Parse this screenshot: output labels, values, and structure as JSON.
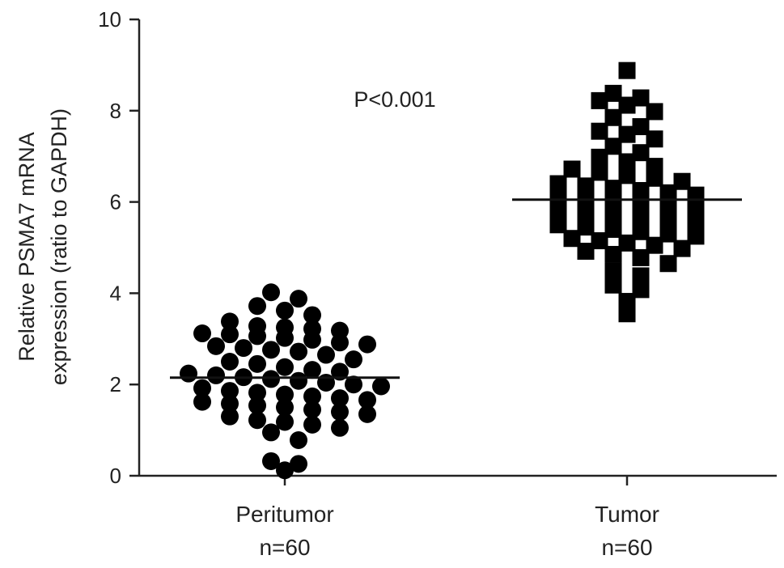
{
  "chart_data": {
    "type": "scatter",
    "title": "",
    "ylabel_lines": [
      "Relative PSMA7 mRNA",
      "expression (ratio to GAPDH)"
    ],
    "xlabel": "",
    "ylim": [
      0,
      10
    ],
    "yticks": [
      "0",
      "2",
      "4",
      "6",
      "8",
      "10"
    ],
    "annotation": "P<0.001",
    "marker_color": "#000000",
    "groups": [
      {
        "name": "Peritumor",
        "n_label": "n=60",
        "marker": "circle",
        "mean": 2.15,
        "values": [
          4.02,
          3.88,
          3.72,
          3.62,
          3.52,
          3.38,
          3.28,
          3.25,
          3.22,
          3.18,
          3.12,
          3.1,
          3.06,
          3.02,
          2.98,
          2.92,
          2.88,
          2.84,
          2.8,
          2.76,
          2.72,
          2.65,
          2.55,
          2.5,
          2.45,
          2.38,
          2.32,
          2.28,
          2.24,
          2.2,
          2.16,
          2.12,
          2.08,
          2.04,
          2.0,
          1.96,
          1.92,
          1.86,
          1.82,
          1.78,
          1.74,
          1.7,
          1.66,
          1.62,
          1.58,
          1.54,
          1.5,
          1.45,
          1.4,
          1.35,
          1.3,
          1.22,
          1.18,
          1.12,
          1.05,
          0.95,
          0.78,
          0.32,
          0.26,
          0.12
        ]
      },
      {
        "name": "Tumor",
        "n_label": "n=60",
        "marker": "square",
        "mean": 6.05,
        "values": [
          8.88,
          8.38,
          8.28,
          8.22,
          8.12,
          7.98,
          7.85,
          7.65,
          7.55,
          7.48,
          7.38,
          7.22,
          7.08,
          6.98,
          6.88,
          6.78,
          6.72,
          6.65,
          6.58,
          6.52,
          6.45,
          6.4,
          6.35,
          6.3,
          6.25,
          6.2,
          6.15,
          6.1,
          6.05,
          6.0,
          5.95,
          5.9,
          5.85,
          5.8,
          5.75,
          5.7,
          5.65,
          5.6,
          5.55,
          5.5,
          5.45,
          5.4,
          5.35,
          5.3,
          5.25,
          5.2,
          5.15,
          5.1,
          5.05,
          4.98,
          4.92,
          4.85,
          4.78,
          4.65,
          4.48,
          4.38,
          4.18,
          4.08,
          3.82,
          3.55
        ]
      }
    ]
  }
}
